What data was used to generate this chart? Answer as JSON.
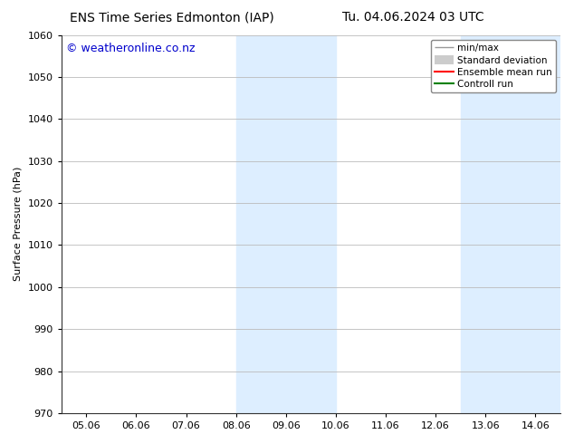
{
  "title_left": "ENS Time Series Edmonton (IAP)",
  "title_right": "Tu. 04.06.2024 03 UTC",
  "ylabel": "Surface Pressure (hPa)",
  "ylim": [
    970,
    1060
  ],
  "yticks": [
    970,
    980,
    990,
    1000,
    1010,
    1020,
    1030,
    1040,
    1050,
    1060
  ],
  "xlabels": [
    "05.06",
    "06.06",
    "07.06",
    "08.06",
    "09.06",
    "10.06",
    "11.06",
    "12.06",
    "13.06",
    "14.06"
  ],
  "xvals": [
    0,
    1,
    2,
    3,
    4,
    5,
    6,
    7,
    8,
    9
  ],
  "shaded_regions": [
    {
      "xmin": 3.0,
      "xmax": 5.0,
      "color": "#ddeeff"
    },
    {
      "xmin": 7.5,
      "xmax": 9.5,
      "color": "#ddeeff"
    }
  ],
  "watermark": "© weatheronline.co.nz",
  "watermark_color": "#0000cc",
  "watermark_fontsize": 9,
  "background_color": "#ffffff",
  "grid_color": "#bbbbbb",
  "legend_items": [
    {
      "label": "min/max",
      "color": "#999999",
      "lw": 1.0,
      "style": "minmax"
    },
    {
      "label": "Standard deviation",
      "color": "#cccccc",
      "lw": 8,
      "style": "band"
    },
    {
      "label": "Ensemble mean run",
      "color": "#ff0000",
      "lw": 1.5,
      "style": "line"
    },
    {
      "label": "Controll run",
      "color": "#008000",
      "lw": 1.5,
      "style": "line"
    }
  ],
  "title_fontsize": 10,
  "axis_fontsize": 8,
  "tick_fontsize": 8,
  "legend_fontsize": 7.5
}
